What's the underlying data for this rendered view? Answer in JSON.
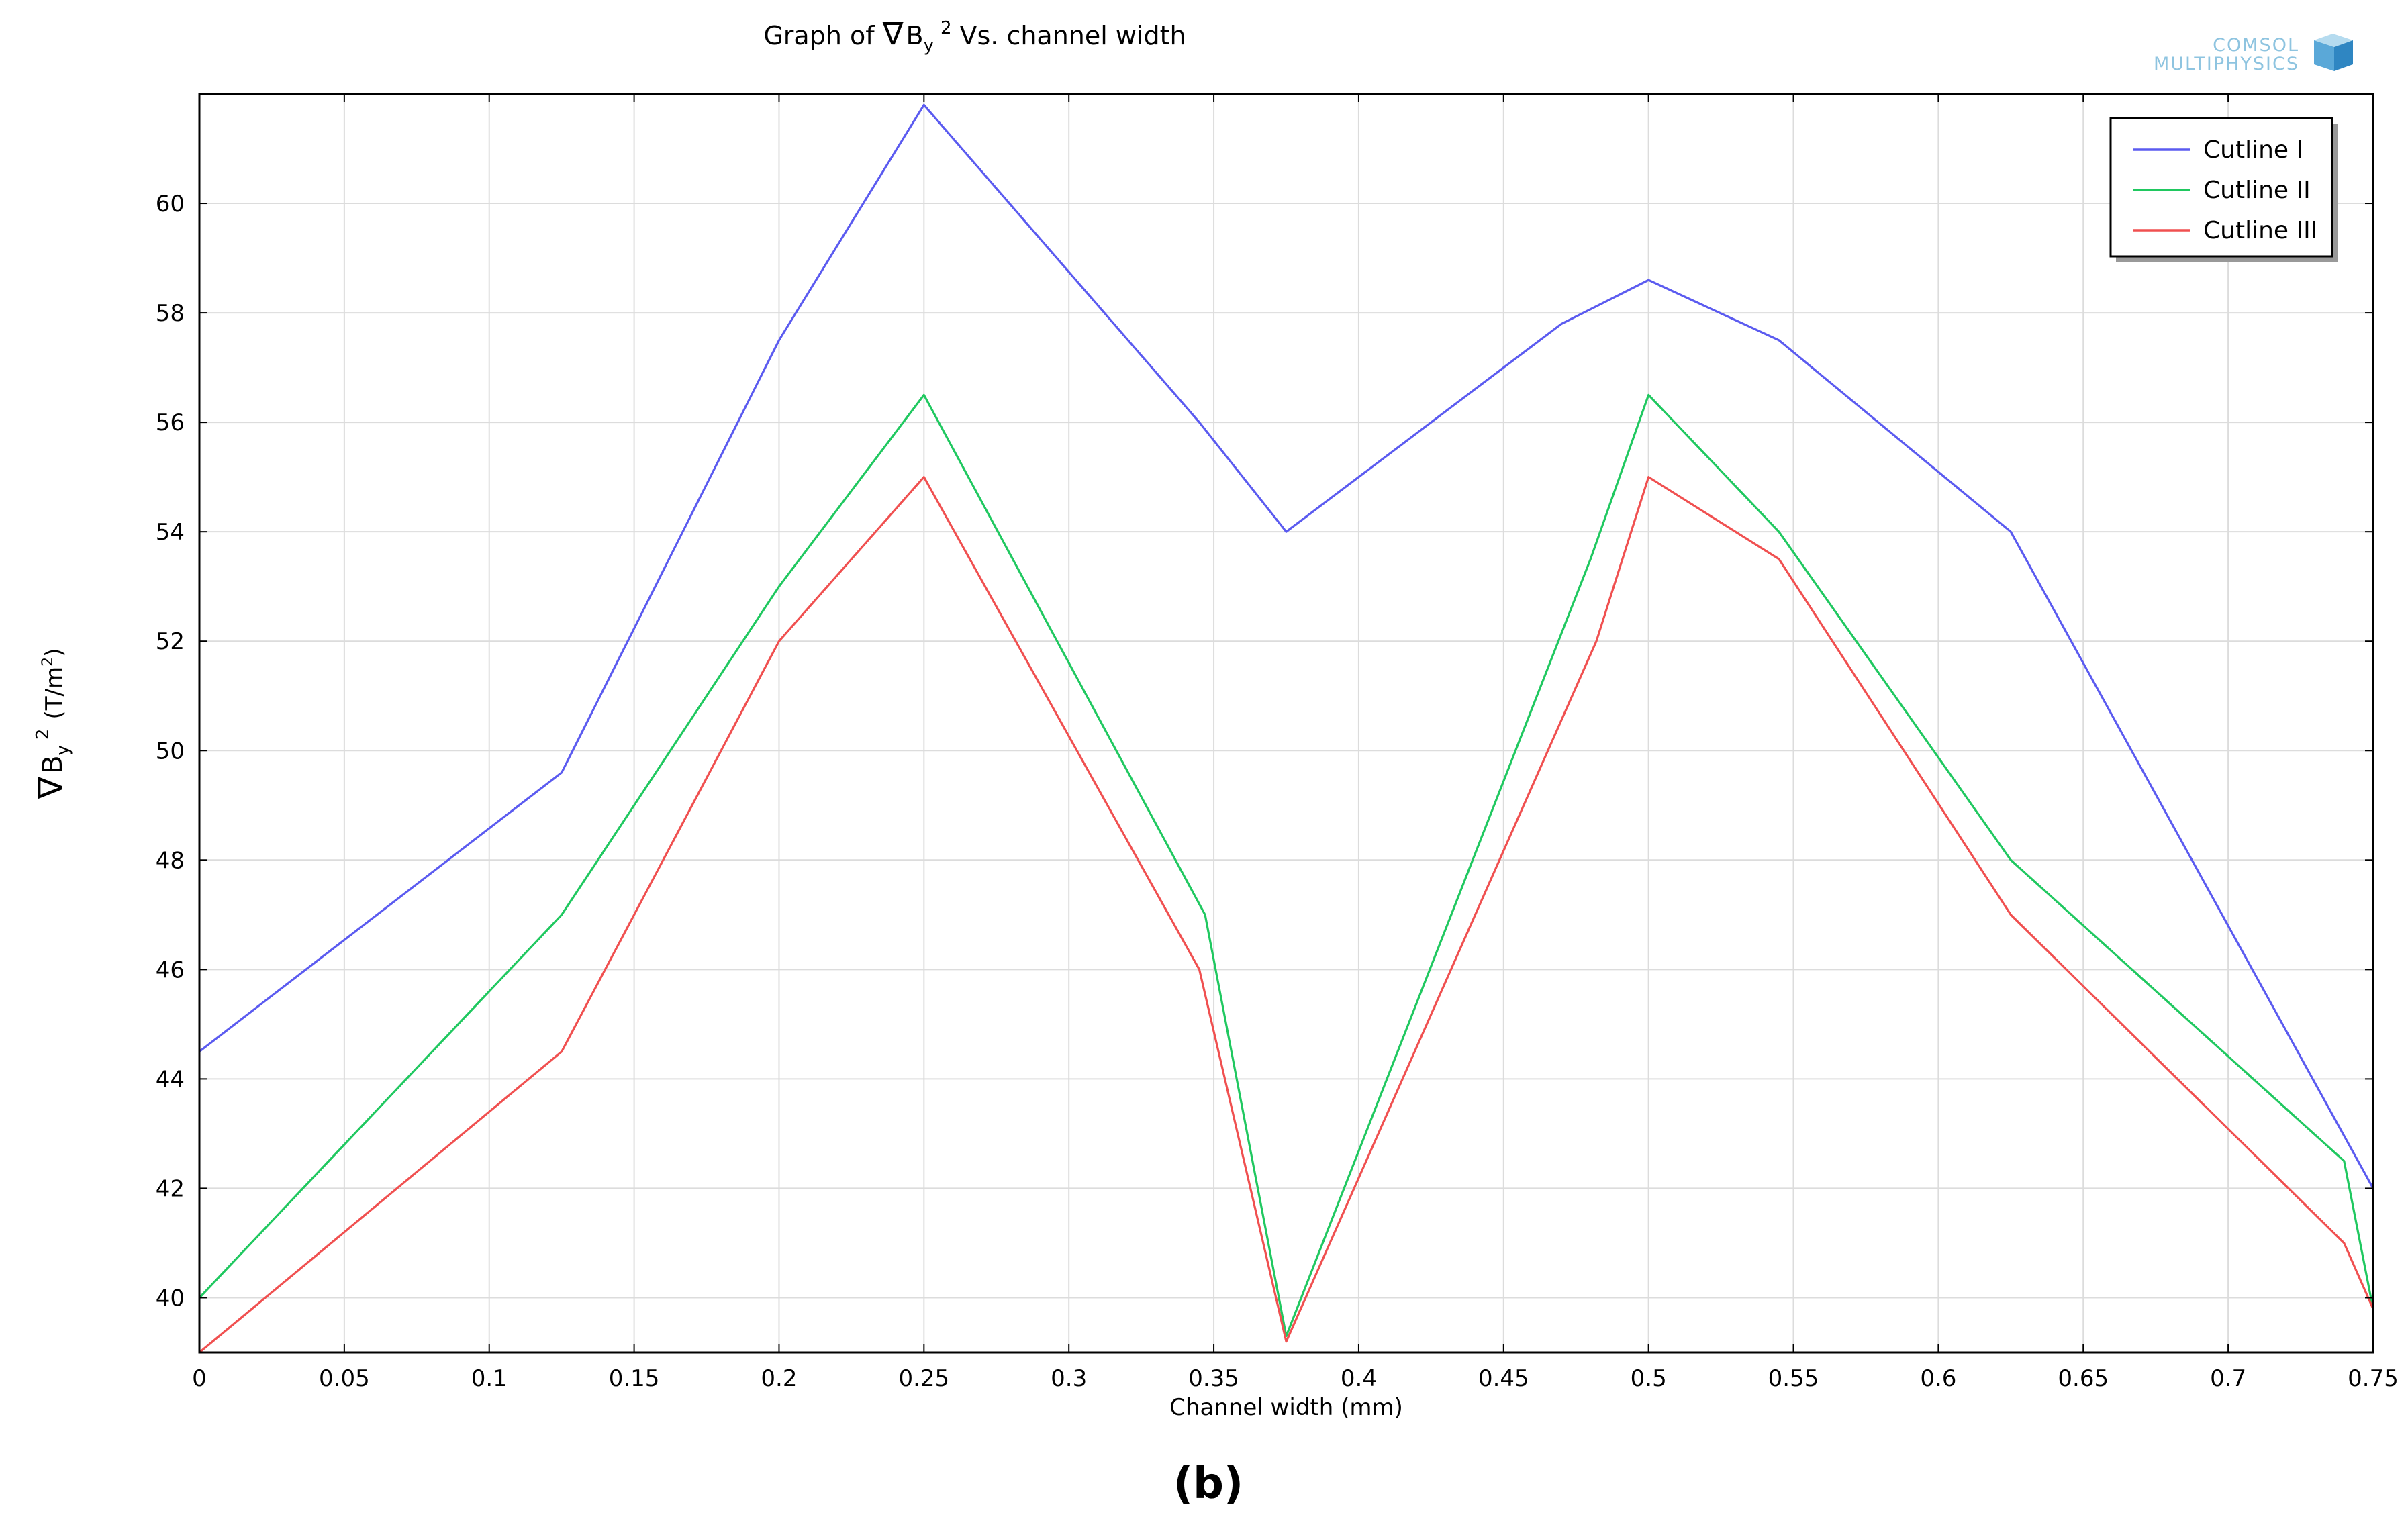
{
  "panel_label": "(b)",
  "watermark": {
    "line1": "COMSOL",
    "line2": "MULTIPHYSICS"
  },
  "chart_data": {
    "type": "line",
    "title": "Graph of ∇B_y² Vs. channel width",
    "title_parts": {
      "prefix": "Graph of ",
      "nabla": "∇",
      "b": "B",
      "sub": "y",
      "sup": "2",
      "suffix": "Vs. channel width"
    },
    "xlabel": "Channel width (mm)",
    "ylabel": "∇B_y² (T/m²)",
    "ylabel_parts": {
      "nabla": "∇",
      "b": "B",
      "sub": "y",
      "sup": "2",
      "unit_prefix": "(T/m",
      "unit_sup": "2",
      "unit_suffix": ")"
    },
    "xlim": [
      0,
      0.75
    ],
    "ylim": [
      39,
      62
    ],
    "xticks": [
      0,
      0.05,
      0.1,
      0.15,
      0.2,
      0.25,
      0.3,
      0.35,
      0.4,
      0.45,
      0.5,
      0.55,
      0.6,
      0.65,
      0.7,
      0.75
    ],
    "xtick_labels": [
      "0",
      "0.05",
      "0.1",
      "0.15",
      "0.2",
      "0.25",
      "0.3",
      "0.35",
      "0.4",
      "0.45",
      "0.5",
      "0.55",
      "0.6",
      "0.65",
      "0.7",
      "0.75"
    ],
    "yticks": [
      40,
      42,
      44,
      46,
      48,
      50,
      52,
      54,
      56,
      58,
      60
    ],
    "ytick_labels": [
      "40",
      "42",
      "44",
      "46",
      "48",
      "50",
      "52",
      "54",
      "56",
      "58",
      "60"
    ],
    "grid": true,
    "legend_position": "top-right",
    "series": [
      {
        "name": "Cutline I",
        "color": "#5b5bf0",
        "x": [
          0,
          0.125,
          0.2,
          0.25,
          0.345,
          0.375,
          0.47,
          0.5,
          0.545,
          0.625,
          0.75
        ],
        "y": [
          44.5,
          49.6,
          57.5,
          61.8,
          56,
          54,
          57.8,
          58.6,
          57.5,
          54,
          42
        ]
      },
      {
        "name": "Cutline II",
        "color": "#20c860",
        "x": [
          0,
          0.125,
          0.2,
          0.25,
          0.347,
          0.375,
          0.48,
          0.5,
          0.545,
          0.625,
          0.74,
          0.75
        ],
        "y": [
          40,
          47,
          53,
          56.5,
          47,
          39.3,
          53.5,
          56.5,
          54,
          48,
          42.5,
          39.8
        ]
      },
      {
        "name": "Cutline III",
        "color": "#f05050",
        "x": [
          0,
          0.125,
          0.2,
          0.25,
          0.345,
          0.375,
          0.482,
          0.5,
          0.545,
          0.625,
          0.74,
          0.75
        ],
        "y": [
          39,
          44.5,
          52,
          55,
          46,
          39.2,
          52,
          55,
          53.5,
          47,
          41,
          39.8
        ]
      }
    ]
  }
}
